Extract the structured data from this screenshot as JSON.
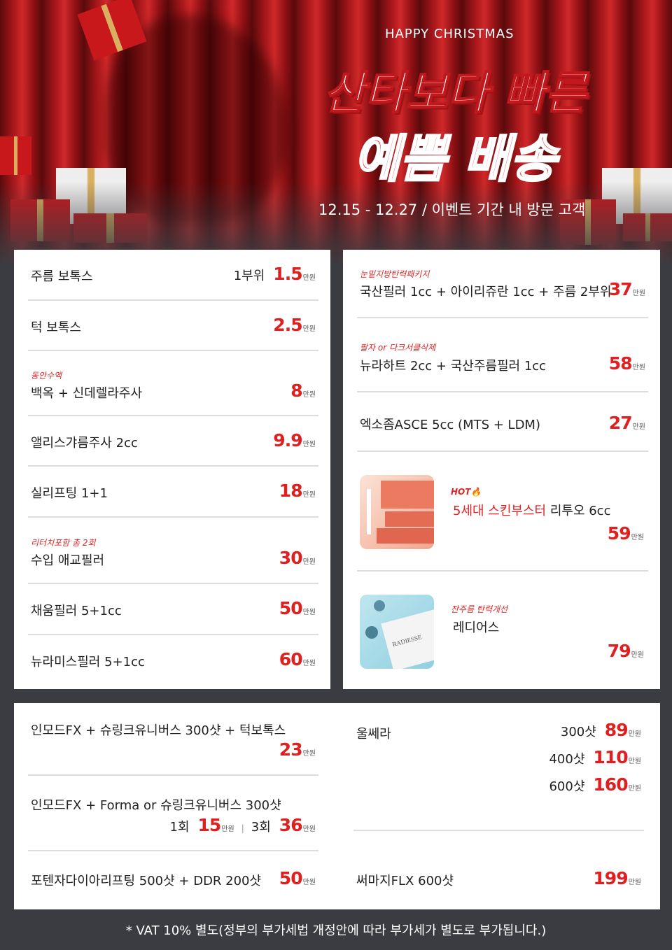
{
  "header": {
    "kicker": "HAPPY CHRISTMAS",
    "title_line1": "산타보다 빠른",
    "title_line2": "예쁨 배송",
    "period": "12.15 - 12.27 / 이벤트 기간 내 방문 고객"
  },
  "unit": "만원",
  "colors": {
    "accent": "#e02020",
    "background": "#3b3c41"
  },
  "left_panel": [
    {
      "name": "주름 보톡스",
      "qty": "1부위",
      "price": "1.5"
    },
    {
      "name": "턱 보톡스",
      "price": "2.5"
    },
    {
      "tag": "동안수액",
      "name": "백옥 + 신데렐라주사",
      "price": "8"
    },
    {
      "name": "앨리스갸름주사 2cc",
      "price": "9.9"
    },
    {
      "name": "실리프팅 1+1",
      "price": "18"
    },
    {
      "tag": "리터치포함 총 2회",
      "name": "수입 애교필러",
      "price": "30"
    },
    {
      "name": "채움필러 5+1cc",
      "price": "50"
    },
    {
      "name": "뉴라미스필러 5+1cc",
      "price": "60"
    }
  ],
  "right_panel": [
    {
      "tag": "눈밑지방탄력패키지",
      "name": "국산필러 1cc + 아이리쥬란 1cc + 주름 2부위",
      "price": "37"
    },
    {
      "tag": "팔자 or 다크서클삭제",
      "name": "뉴라하트 2cc + 국산주름필러 1cc",
      "price": "58"
    },
    {
      "name": "엑소좀ASCE 5cc (MTS + LDM)",
      "price": "27"
    },
    {
      "tag": "HOT",
      "tag_icon": "fire-icon",
      "name_highlight": "5세대 스킨부스터",
      "name": "리투오 6cc",
      "price": "59",
      "image_icon": "rejuran-product-image"
    },
    {
      "tag": "잔주름 탄력개선",
      "name": "레디어스",
      "price": "79",
      "image_icon": "radiesse-product-image",
      "image_text": "RADIESSE"
    }
  ],
  "bottom_left": [
    {
      "name": "인모드FX + 슈링크유니버스 300샷 + 턱보톡스",
      "price": "23"
    },
    {
      "name": "인모드FX + Forma or 슈링크유니버스 300샷",
      "options": [
        {
          "qty": "1회",
          "price": "15"
        },
        {
          "qty": "3회",
          "price": "36"
        }
      ]
    },
    {
      "name": "포텐자다이아리프팅 500샷 + DDR 200샷",
      "price": "50"
    }
  ],
  "bottom_right": [
    {
      "name": "울쎄라",
      "options": [
        {
          "qty": "300샷",
          "price": "89"
        },
        {
          "qty": "400샷",
          "price": "110"
        },
        {
          "qty": "600샷",
          "price": "160"
        }
      ]
    },
    {
      "name": "써마지FLX 600샷",
      "price": "199"
    }
  ],
  "footer": "* VAT 10% 별도(정부의 부가세법 개정안에 따라 부가세가 별도로 부가됩니다.)"
}
